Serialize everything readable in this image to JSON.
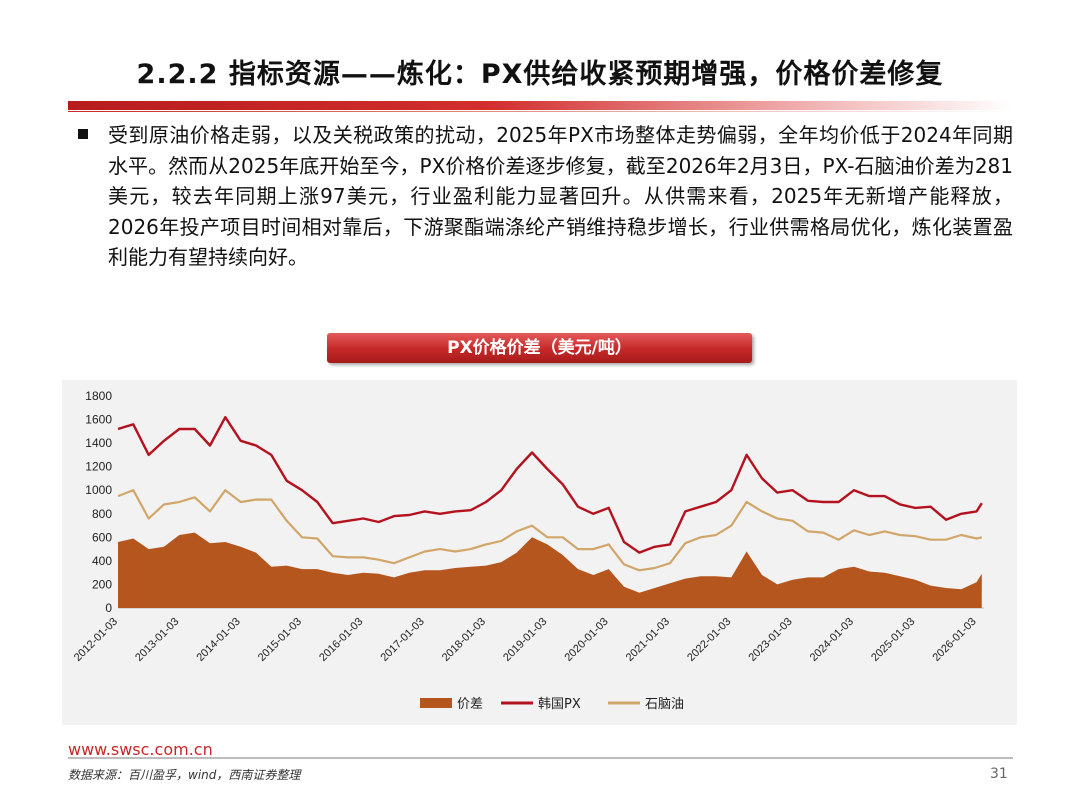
{
  "header": {
    "title": "2.2.2 指标资源——炼化：PX供给收紧预期增强，价格价差修复"
  },
  "body": {
    "paragraph": "受到原油价格走弱，以及关税政策的扰动，2025年PX市场整体走势偏弱，全年均价低于2024年同期水平。然而从2025年底开始至今，PX价格价差逐步修复，截至2026年2月3日，PX-石脑油价差为281美元，较去年同期上涨97美元，行业盈利能力显著回升。从供需来看，2025年无新增产能释放，2026年投产项目时间相对靠后，下游聚酯端涤纶产销维持稳步增长，行业供需格局优化，炼化装置盈利能力有望持续向好。"
  },
  "chart_title": "PX价格价差（美元/吨）",
  "chart_data": {
    "type": "line",
    "title": "PX价格价差（美元/吨）",
    "ylim": [
      0,
      1800
    ],
    "yticks": [
      0,
      200,
      400,
      600,
      800,
      1000,
      1200,
      1400,
      1600,
      1800
    ],
    "x_ticks": [
      "2012-01-03",
      "2013-01-03",
      "2014-01-03",
      "2015-01-03",
      "2016-01-03",
      "2017-01-03",
      "2018-01-03",
      "2019-01-03",
      "2020-01-03",
      "2021-01-03",
      "2022-01-03",
      "2023-01-03",
      "2024-01-03",
      "2025-01-03",
      "2026-01-03"
    ],
    "legend_position": "bottom",
    "x": [
      "2012-01",
      "2012-04",
      "2012-07",
      "2012-10",
      "2013-01",
      "2013-04",
      "2013-07",
      "2013-10",
      "2014-01",
      "2014-04",
      "2014-07",
      "2014-10",
      "2015-01",
      "2015-04",
      "2015-07",
      "2015-10",
      "2016-01",
      "2016-04",
      "2016-07",
      "2016-10",
      "2017-01",
      "2017-04",
      "2017-07",
      "2017-10",
      "2018-01",
      "2018-04",
      "2018-07",
      "2018-10",
      "2019-01",
      "2019-04",
      "2019-07",
      "2019-10",
      "2020-01",
      "2020-04",
      "2020-07",
      "2020-10",
      "2021-01",
      "2021-04",
      "2021-07",
      "2021-10",
      "2022-01",
      "2022-04",
      "2022-07",
      "2022-10",
      "2023-01",
      "2023-04",
      "2023-07",
      "2023-10",
      "2024-01",
      "2024-04",
      "2024-07",
      "2024-10",
      "2025-01",
      "2025-04",
      "2025-07",
      "2025-10",
      "2026-01",
      "2026-02"
    ],
    "series": [
      {
        "name": "价差",
        "type": "area",
        "color": "#b5561e",
        "values": [
          560,
          590,
          500,
          520,
          620,
          640,
          550,
          560,
          520,
          470,
          350,
          360,
          330,
          330,
          300,
          280,
          300,
          290,
          260,
          300,
          320,
          320,
          340,
          350,
          360,
          390,
          470,
          600,
          540,
          450,
          330,
          280,
          330,
          180,
          130,
          170,
          210,
          250,
          270,
          270,
          260,
          480,
          280,
          200,
          240,
          260,
          260,
          330,
          350,
          310,
          300,
          270,
          240,
          190,
          170,
          160,
          220,
          290
        ]
      },
      {
        "name": "韩国PX",
        "type": "line",
        "color": "#b3121e",
        "values": [
          1520,
          1560,
          1300,
          1420,
          1520,
          1520,
          1380,
          1620,
          1420,
          1380,
          1300,
          1080,
          1000,
          900,
          720,
          740,
          760,
          730,
          780,
          790,
          820,
          800,
          820,
          830,
          900,
          1000,
          1180,
          1320,
          1180,
          1050,
          860,
          800,
          850,
          560,
          470,
          520,
          540,
          820,
          860,
          900,
          1000,
          1300,
          1100,
          980,
          1000,
          910,
          900,
          900,
          1000,
          950,
          950,
          880,
          850,
          860,
          750,
          800,
          820,
          890
        ]
      },
      {
        "name": "石脑油",
        "type": "line",
        "color": "#d1a66a",
        "values": [
          950,
          1000,
          760,
          880,
          900,
          940,
          820,
          1000,
          900,
          920,
          920,
          740,
          600,
          590,
          440,
          430,
          430,
          410,
          380,
          430,
          480,
          500,
          480,
          500,
          540,
          570,
          650,
          700,
          600,
          600,
          500,
          500,
          540,
          370,
          320,
          340,
          380,
          550,
          600,
          620,
          700,
          900,
          820,
          760,
          740,
          650,
          640,
          580,
          660,
          620,
          650,
          620,
          610,
          580,
          580,
          620,
          590,
          600
        ]
      }
    ]
  },
  "footer": {
    "url": "www.swsc.com.cn",
    "source": "数据来源：百川盈孚，wind，西南证券整理",
    "page_number": "31"
  }
}
